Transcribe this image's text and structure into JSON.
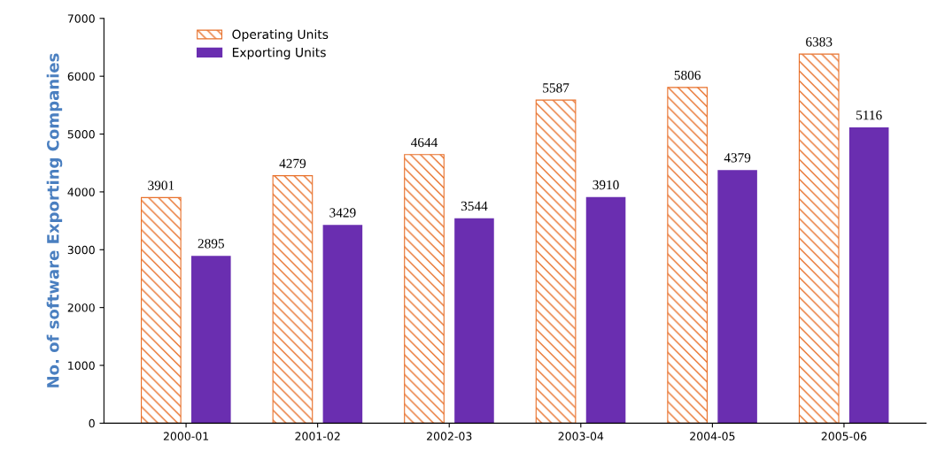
{
  "chart_data": {
    "type": "bar",
    "ylabel": "No. of software Exporting Companies",
    "categories": [
      "2000-01",
      "2001-02",
      "2002-03",
      "2003-04",
      "2004-05",
      "2005-06"
    ],
    "series": [
      {
        "name": "Operating Units",
        "color": "#e8702a",
        "values": [
          3901,
          4279,
          4644,
          5587,
          5806,
          6383
        ]
      },
      {
        "name": "Exporting Units",
        "color": "#6a2eb0",
        "values": [
          2895,
          3429,
          3544,
          3910,
          4379,
          5116
        ]
      }
    ],
    "ylim": [
      0,
      7000
    ],
    "yticks": [
      0,
      1000,
      2000,
      3000,
      4000,
      5000,
      6000,
      7000
    ],
    "data_labels": true,
    "legend": "top left",
    "grid": false
  }
}
